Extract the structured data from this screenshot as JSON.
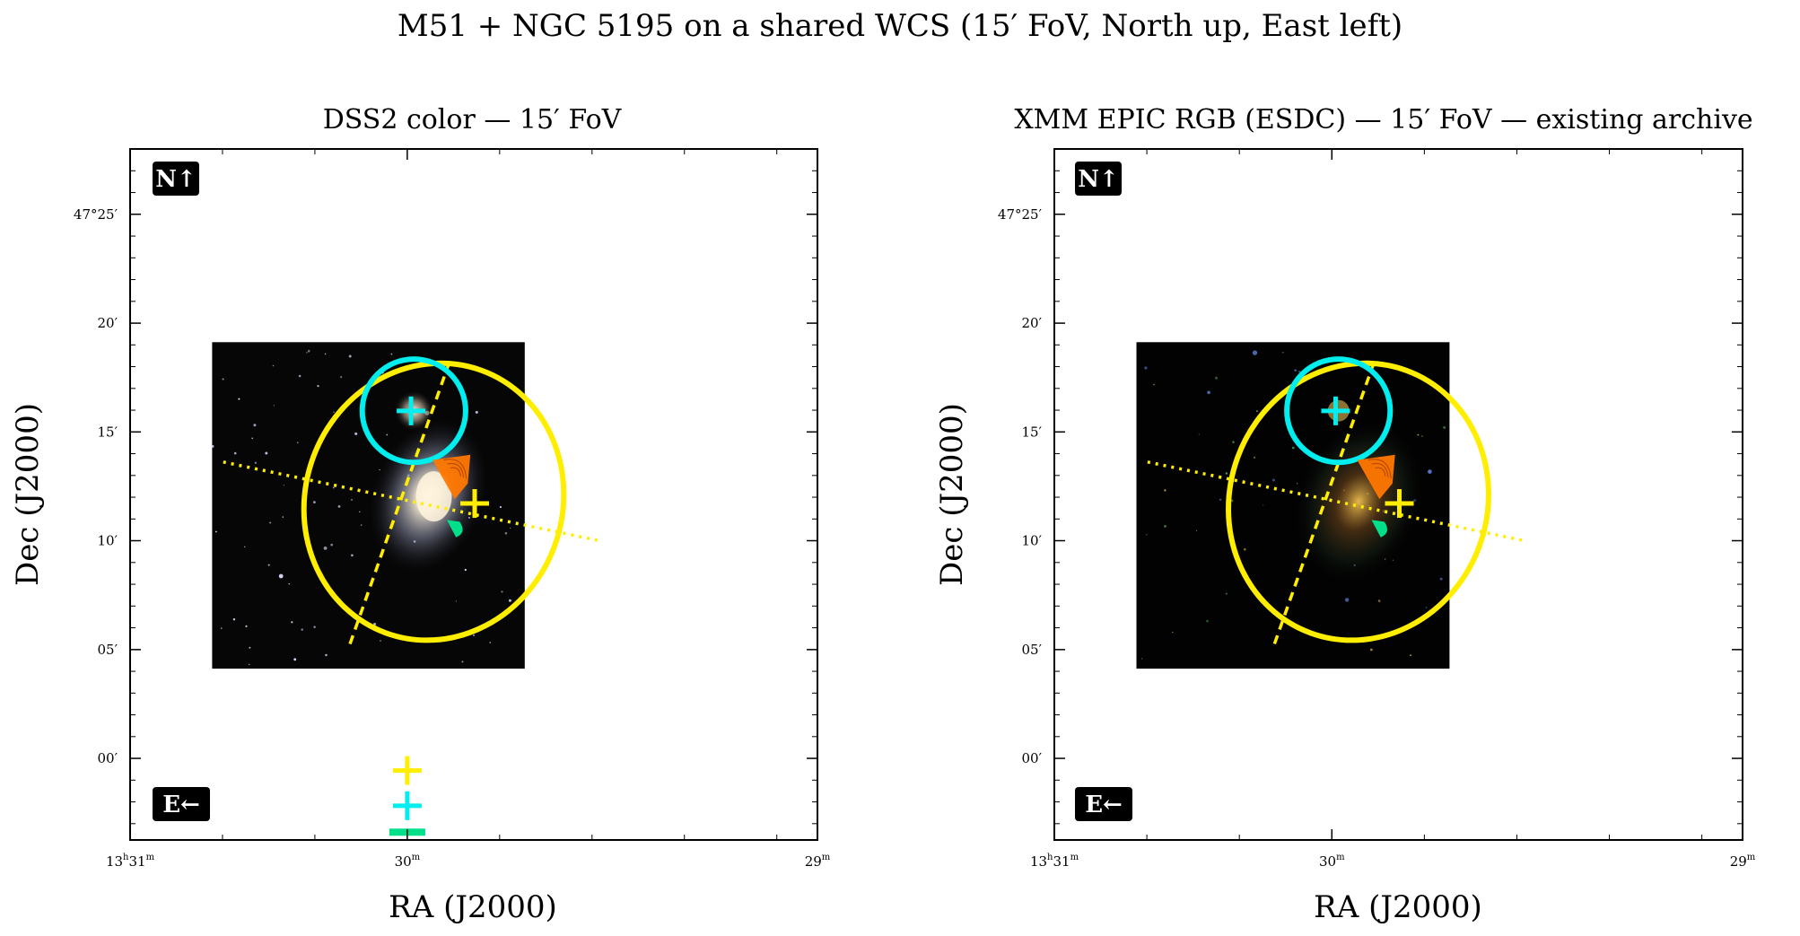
{
  "suptitle": "M51 + NGC 5195 on a shared WCS (15′ FoV, North up, East left)",
  "colors": {
    "ellipse": "#ffee00",
    "circle": "#00eeee",
    "wedge": "#ff7700",
    "blob": "#00e08a",
    "dss_background": "#060606",
    "xmm_background": "#020202"
  },
  "chart_data": [
    {
      "type": "scatter",
      "panel": "dss",
      "title": "DSS2 color — 15′ FoV",
      "xlabel": "RA (J2000)",
      "ylabel": "Dec (J2000)",
      "compass_north": "N↑",
      "compass_east": "E←",
      "xlim_deg": [
        202.625,
        202.315
      ],
      "ylim_deg": [
        46.9375,
        47.4667
      ],
      "xticks": [
        {
          "h": "13",
          "m": "31",
          "ra_deg": 202.75,
          "first": true
        },
        {
          "h": "",
          "m": "30",
          "ra_deg": 202.5,
          "first": false
        },
        {
          "h": "",
          "m": "29",
          "ra_deg": 202.25,
          "first": false
        }
      ],
      "yticks": [
        {
          "label": "47°25′",
          "dec_deg": 47.4167
        },
        {
          "label": "20′",
          "dec_deg": 47.3333
        },
        {
          "label": "15′",
          "dec_deg": 47.25
        },
        {
          "label": "10′",
          "dec_deg": 47.1667
        },
        {
          "label": "05′",
          "dec_deg": 47.0833
        },
        {
          "label": "00′",
          "dec_deg": 47.0
        }
      ],
      "image_extent_deg": {
        "ra": [
          202.588,
          202.447
        ],
        "dec": [
          47.3187,
          47.0687
        ]
      },
      "ellipse": {
        "ra": 202.488,
        "dec": 47.1965,
        "semi_major_deg": 0.107,
        "semi_minor_deg": 0.058,
        "pa_deg": 20
      },
      "major_axis_line": {
        "ra": [
          202.481,
          202.526
        ],
        "dec": [
          47.3035,
          47.0868
        ]
      },
      "minor_axis_line": {
        "ra": [
          202.583,
          202.412
        ],
        "dec": [
          47.227,
          47.1662
        ]
      },
      "circle": {
        "ra": 202.497,
        "dec": 47.2662,
        "radius_deg": 0.0396
      },
      "center_markers": [
        {
          "name": "M51",
          "ra": 202.4696,
          "dec": 47.1952,
          "color": "ellipse"
        },
        {
          "name": "NGC 5195",
          "ra": 202.4983,
          "dec": 47.2661,
          "color": "circle"
        }
      ],
      "wedge": {
        "ra": 202.478,
        "dec": 47.2175,
        "r_deg": 0.02
      },
      "blob": {
        "ra": 202.478,
        "dec": 47.177,
        "r_deg": 0.007
      },
      "outlier_markers": [
        {
          "ra": 202.5,
          "dec": 46.9907,
          "color": "ellipse"
        },
        {
          "ra": 202.5,
          "dec": 46.9637,
          "color": "circle"
        }
      ],
      "outlier_bar": {
        "ra": 202.5,
        "dec": 46.9435,
        "color": "blob"
      }
    },
    {
      "type": "scatter",
      "panel": "xmm",
      "title": "XMM EPIC RGB (ESDC) — 15′ FoV — existing archive",
      "xlabel": "RA (J2000)",
      "ylabel": "Dec (J2000)",
      "compass_north": "N↑",
      "compass_east": "E←",
      "xlim_deg": [
        202.625,
        202.315
      ],
      "ylim_deg": [
        46.9375,
        47.4667
      ],
      "xticks": [
        {
          "h": "13",
          "m": "31",
          "ra_deg": 202.75,
          "first": true
        },
        {
          "h": "",
          "m": "30",
          "ra_deg": 202.5,
          "first": false
        },
        {
          "h": "",
          "m": "29",
          "ra_deg": 202.25,
          "first": false
        }
      ],
      "yticks": [
        {
          "label": "47°25′",
          "dec_deg": 47.4167
        },
        {
          "label": "20′",
          "dec_deg": 47.3333
        },
        {
          "label": "15′",
          "dec_deg": 47.25
        },
        {
          "label": "10′",
          "dec_deg": 47.1667
        },
        {
          "label": "05′",
          "dec_deg": 47.0833
        },
        {
          "label": "00′",
          "dec_deg": 47.0
        }
      ],
      "image_extent_deg": {
        "ra": [
          202.588,
          202.447
        ],
        "dec": [
          47.3187,
          47.0687
        ]
      },
      "ellipse": {
        "ra": 202.488,
        "dec": 47.1965,
        "semi_major_deg": 0.107,
        "semi_minor_deg": 0.058,
        "pa_deg": 20
      },
      "major_axis_line": {
        "ra": [
          202.481,
          202.526
        ],
        "dec": [
          47.3035,
          47.0868
        ]
      },
      "minor_axis_line": {
        "ra": [
          202.583,
          202.412
        ],
        "dec": [
          47.227,
          47.1662
        ]
      },
      "circle": {
        "ra": 202.497,
        "dec": 47.2662,
        "radius_deg": 0.0396
      },
      "center_markers": [
        {
          "name": "M51",
          "ra": 202.4696,
          "dec": 47.1952,
          "color": "ellipse"
        },
        {
          "name": "NGC 5195",
          "ra": 202.4983,
          "dec": 47.2661,
          "color": "circle"
        }
      ],
      "wedge": {
        "ra": 202.478,
        "dec": 47.2175,
        "r_deg": 0.02
      },
      "blob": {
        "ra": 202.478,
        "dec": 47.177,
        "r_deg": 0.007
      },
      "outlier_markers": [],
      "outlier_bar": null
    }
  ]
}
